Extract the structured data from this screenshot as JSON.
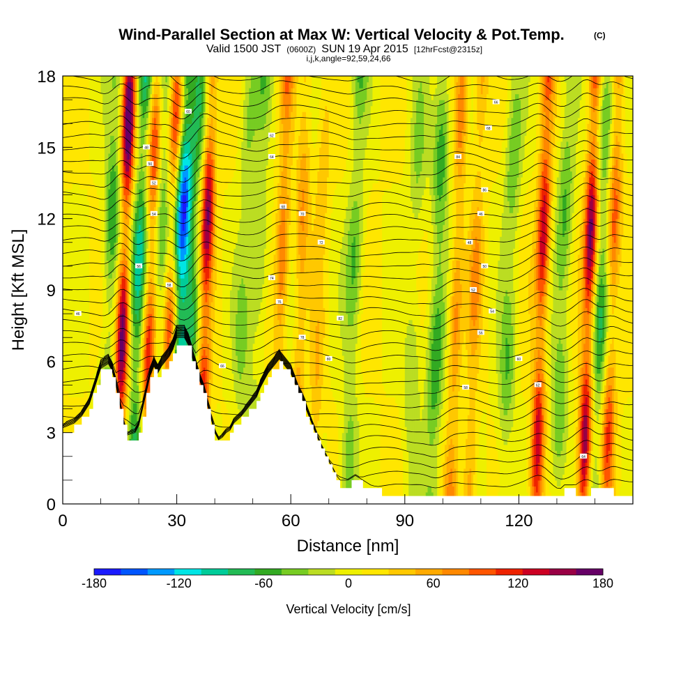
{
  "chart_data": {
    "type": "heatmap",
    "title": "Wind-Parallel Section at Max W: Vertical Velocity & Pot.Temp.",
    "title_badge": "(C)",
    "subtitle": {
      "prefix": "Valid 1500 JST",
      "utc": "(0600Z)",
      "date": "SUN 19 Apr 2015",
      "forecast": "[12hrFcst@2315z]"
    },
    "subtitle2": "i,j,k,angle=92,59,24,66",
    "xlabel": "Distance [nm]",
    "ylabel": "Height [Kft MSL]",
    "xlim": [
      0,
      150
    ],
    "ylim": [
      0,
      18
    ],
    "x_ticks": [
      0,
      30,
      60,
      90,
      120
    ],
    "x_minor": [
      10,
      20,
      40,
      50,
      70,
      80,
      100,
      110,
      130,
      140
    ],
    "y_ticks": [
      0,
      3,
      6,
      9,
      12,
      15,
      18
    ],
    "y_minor": [
      1,
      2,
      4,
      5,
      7,
      8,
      10,
      11,
      13,
      14,
      16,
      17
    ],
    "colorbar": {
      "label": "Vertical Velocity [cm/s]",
      "min": -180,
      "max": 180,
      "tick_values": [
        -180,
        -120,
        -60,
        0,
        60,
        120,
        180
      ],
      "colors": [
        "#1a1aff",
        "#0055ff",
        "#0099ff",
        "#00e5e5",
        "#00cc99",
        "#22bb55",
        "#33aa22",
        "#77cc22",
        "#bbdd22",
        "#eef000",
        "#ffe600",
        "#ffc800",
        "#ffaa00",
        "#ff8800",
        "#ff5500",
        "#ee2200",
        "#cc0022",
        "#990044",
        "#660066"
      ]
    },
    "terrain_kft": [
      [
        0,
        3.0
      ],
      [
        3,
        3.2
      ],
      [
        5,
        3.5
      ],
      [
        7,
        4.0
      ],
      [
        8,
        4.5
      ],
      [
        9,
        5.0
      ],
      [
        10,
        5.5
      ],
      [
        12,
        5.7
      ],
      [
        13,
        5.4
      ],
      [
        14,
        4.8
      ],
      [
        15,
        4.0
      ],
      [
        16,
        3.2
      ],
      [
        17,
        2.7
      ],
      [
        19,
        2.8
      ],
      [
        20,
        3.1
      ],
      [
        21,
        3.8
      ],
      [
        22,
        4.5
      ],
      [
        23,
        5.2
      ],
      [
        24,
        5.6
      ],
      [
        25,
        5.3
      ],
      [
        26,
        5.6
      ],
      [
        27,
        5.8
      ],
      [
        28,
        6.0
      ],
      [
        29,
        6.3
      ],
      [
        30,
        6.8
      ],
      [
        32,
        6.8
      ],
      [
        33,
        6.5
      ],
      [
        34,
        6.0
      ],
      [
        35,
        5.5
      ],
      [
        36,
        5.0
      ],
      [
        37,
        4.6
      ],
      [
        38,
        4.0
      ],
      [
        39,
        3.4
      ],
      [
        40,
        2.8
      ],
      [
        41,
        2.5
      ],
      [
        42,
        2.6
      ],
      [
        43,
        2.8
      ],
      [
        44,
        2.9
      ],
      [
        45,
        3.2
      ],
      [
        47,
        3.5
      ],
      [
        49,
        3.9
      ],
      [
        51,
        4.3
      ],
      [
        52,
        4.7
      ],
      [
        53,
        5.0
      ],
      [
        54,
        5.3
      ],
      [
        56,
        5.7
      ],
      [
        57,
        5.9
      ],
      [
        58,
        5.7
      ],
      [
        59,
        5.5
      ],
      [
        60,
        5.3
      ],
      [
        61,
        4.9
      ],
      [
        62,
        4.5
      ],
      [
        63,
        4.2
      ],
      [
        64,
        3.8
      ],
      [
        65,
        3.4
      ],
      [
        66,
        3.0
      ],
      [
        67,
        2.6
      ],
      [
        68,
        2.2
      ],
      [
        69,
        1.9
      ],
      [
        70,
        1.6
      ],
      [
        71,
        1.3
      ],
      [
        72,
        1.0
      ],
      [
        73,
        0.8
      ],
      [
        75,
        0.8
      ],
      [
        77,
        1.0
      ],
      [
        79,
        0.8
      ],
      [
        81,
        0.6
      ],
      [
        83,
        0.5
      ],
      [
        85,
        0.3
      ],
      [
        90,
        0.3
      ],
      [
        100,
        0.3
      ],
      [
        110,
        0.3
      ],
      [
        120,
        0.3
      ],
      [
        130,
        0.3
      ],
      [
        132,
        0.6
      ],
      [
        134,
        0.6
      ],
      [
        135,
        0.3
      ],
      [
        137,
        0.3
      ],
      [
        140,
        0.6
      ],
      [
        144,
        0.6
      ],
      [
        145,
        0.3
      ],
      [
        150,
        0.3
      ]
    ],
    "updrafts": [
      {
        "x": 15.5,
        "w": 180
      },
      {
        "x": 22.5,
        "w": 120
      },
      {
        "x": 28.0,
        "w": 110
      },
      {
        "x": 37.0,
        "w": 150
      },
      {
        "x": 57.0,
        "w": 85
      },
      {
        "x": 62.0,
        "w": 60
      },
      {
        "x": 67.0,
        "w": 35
      },
      {
        "x": 103.0,
        "w": 70
      },
      {
        "x": 108.0,
        "w": 55
      },
      {
        "x": 125.5,
        "w": 135
      },
      {
        "x": 138.0,
        "w": 160
      },
      {
        "x": 144.0,
        "w": 95
      }
    ],
    "downdrafts": [
      {
        "x": 12.0,
        "w": -80
      },
      {
        "x": 19.5,
        "w": -110
      },
      {
        "x": 25.0,
        "w": -70
      },
      {
        "x": 30.5,
        "w": -175
      },
      {
        "x": 34.0,
        "w": -70
      },
      {
        "x": 47.0,
        "w": -40
      },
      {
        "x": 51.0,
        "w": -50
      },
      {
        "x": 76.0,
        "w": -60
      },
      {
        "x": 92.0,
        "w": -40
      },
      {
        "x": 98.0,
        "w": -75
      },
      {
        "x": 117.0,
        "w": -55
      },
      {
        "x": 131.0,
        "w": -60
      },
      {
        "x": 141.0,
        "w": -75
      }
    ],
    "contour_labels": [
      "46",
      "48",
      "50",
      "52",
      "54",
      "56",
      "58",
      "60",
      "62",
      "64",
      "66",
      "68",
      "70",
      "72",
      "74",
      "76",
      "78",
      "80",
      "82",
      "84",
      "86"
    ]
  }
}
